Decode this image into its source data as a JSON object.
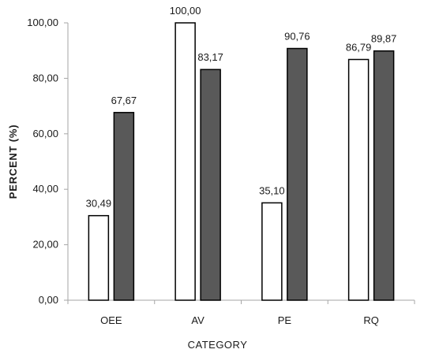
{
  "chart_data": {
    "type": "bar",
    "categories": [
      "OEE",
      "AV",
      "PE",
      "RQ"
    ],
    "series": [
      {
        "values": [
          30.49,
          100.0,
          35.1,
          86.79
        ],
        "color": "#ffffff"
      },
      {
        "values": [
          67.67,
          83.17,
          90.76,
          89.87
        ],
        "color": "#595959"
      }
    ],
    "data_labels": [
      [
        "30,49",
        "100,00",
        "35,10",
        "86,79"
      ],
      [
        "67,67",
        "83,17",
        "90,76",
        "89,87"
      ]
    ],
    "xlabel": "CATEGORY",
    "ylabel": "PERCENT (%)",
    "ylim": [
      0,
      100
    ],
    "y_ticks": [
      "0,00",
      "20,00",
      "40,00",
      "60,00",
      "80,00",
      "100,00"
    ],
    "grid": false,
    "legend": "none",
    "bar_outline_color": "#000000"
  }
}
